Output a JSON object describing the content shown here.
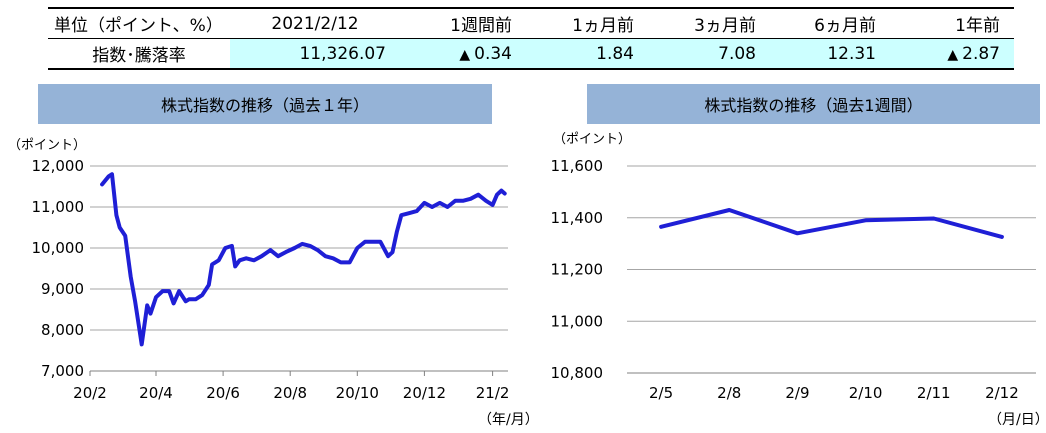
{
  "summary_table": {
    "headers": [
      "単位（ポイント、%）",
      "2021/2/12",
      "1週間前",
      "1ヵ月前",
      "3ヵ月前",
      "6ヵ月前",
      "1年前"
    ],
    "row_label": "指数･騰落率",
    "values": [
      {
        "text": "11,326.07",
        "marker": ""
      },
      {
        "text": "0.34",
        "marker": "▲"
      },
      {
        "text": "1.84",
        "marker": ""
      },
      {
        "text": "7.08",
        "marker": ""
      },
      {
        "text": "12.31",
        "marker": ""
      },
      {
        "text": "2.87",
        "marker": "▲"
      }
    ],
    "highlight_color": "#ccffff"
  },
  "chart_data": [
    {
      "type": "line",
      "title": "株式指数の推移（過去１年）",
      "ylabel": "（ポイント）",
      "xlabel": "（年/月）",
      "ylim": [
        7000,
        12000
      ],
      "yticks": [
        7000,
        8000,
        9000,
        10000,
        11000,
        12000
      ],
      "ytick_labels": [
        "7,000",
        "8,000",
        "9,000",
        "10,000",
        "11,000",
        "12,000"
      ],
      "xticks": [
        "20/2",
        "20/4",
        "20/6",
        "20/8",
        "20/10",
        "20/12",
        "21/2"
      ],
      "grid": true,
      "line_color": "#1f1fd6",
      "x": [
        "2020-02-12",
        "2020-02-18",
        "2020-02-21",
        "2020-02-25",
        "2020-02-28",
        "2020-03-04",
        "2020-03-09",
        "2020-03-13",
        "2020-03-17",
        "2020-03-19",
        "2020-03-24",
        "2020-03-27",
        "2020-04-01",
        "2020-04-07",
        "2020-04-13",
        "2020-04-17",
        "2020-04-22",
        "2020-04-28",
        "2020-05-01",
        "2020-05-07",
        "2020-05-13",
        "2020-05-19",
        "2020-05-22",
        "2020-05-28",
        "2020-06-03",
        "2020-06-09",
        "2020-06-12",
        "2020-06-16",
        "2020-06-22",
        "2020-06-29",
        "2020-07-06",
        "2020-07-14",
        "2020-07-21",
        "2020-07-28",
        "2020-08-05",
        "2020-08-12",
        "2020-08-19",
        "2020-08-26",
        "2020-09-02",
        "2020-09-09",
        "2020-09-16",
        "2020-09-24",
        "2020-10-01",
        "2020-10-08",
        "2020-10-15",
        "2020-10-22",
        "2020-10-29",
        "2020-11-02",
        "2020-11-06",
        "2020-11-10",
        "2020-11-17",
        "2020-11-24",
        "2020-12-01",
        "2020-12-08",
        "2020-12-15",
        "2020-12-22",
        "2020-12-29",
        "2021-01-05",
        "2021-01-12",
        "2021-01-19",
        "2021-01-26",
        "2021-02-01",
        "2021-02-05",
        "2021-02-09",
        "2021-02-12"
      ],
      "values": [
        11550,
        11750,
        11800,
        10800,
        10500,
        10300,
        9300,
        8700,
        8000,
        7650,
        8600,
        8400,
        8800,
        8950,
        8950,
        8650,
        8950,
        8700,
        8750,
        8750,
        8850,
        9100,
        9600,
        9700,
        10000,
        10050,
        9550,
        9700,
        9750,
        9700,
        9800,
        9950,
        9800,
        9900,
        10000,
        10100,
        10050,
        9950,
        9800,
        9750,
        9650,
        9650,
        10000,
        10150,
        10150,
        10150,
        9800,
        9900,
        10400,
        10800,
        10850,
        10900,
        11100,
        11000,
        11100,
        11000,
        11150,
        11150,
        11200,
        11300,
        11150,
        11050,
        11300,
        11400,
        11330
      ]
    },
    {
      "type": "line",
      "title": "株式指数の推移（過去1週間）",
      "ylabel": "（ポイント）",
      "xlabel": "（月/日）",
      "ylim": [
        10800,
        11600
      ],
      "yticks": [
        10800,
        11000,
        11200,
        11400,
        11600
      ],
      "ytick_labels": [
        "10,800",
        "11,000",
        "11,200",
        "11,400",
        "11,600"
      ],
      "categories": [
        "2/5",
        "2/8",
        "2/9",
        "2/10",
        "2/11",
        "2/12"
      ],
      "values": [
        11365,
        11430,
        11340,
        11390,
        11397,
        11326
      ],
      "grid": true,
      "line_color": "#1f1fd6"
    }
  ]
}
